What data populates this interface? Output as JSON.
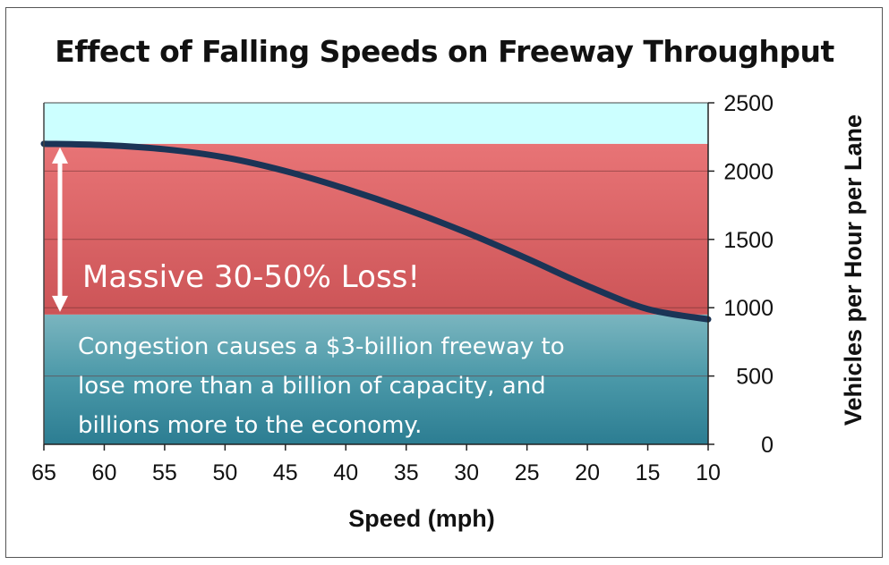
{
  "chart_data": {
    "type": "line",
    "title": "Effect of Falling Speeds on Freeway Throughput",
    "xlabel": "Speed (mph)",
    "ylabel": "Vehicles per Hour per Lane",
    "x_axis_reversed": true,
    "y_axis_side": "right",
    "xlim": [
      65,
      10
    ],
    "ylim": [
      0,
      2500
    ],
    "x_ticks": [
      65,
      60,
      55,
      50,
      45,
      40,
      35,
      30,
      25,
      20,
      15,
      10
    ],
    "y_ticks": [
      0,
      500,
      1000,
      1500,
      2000,
      2500
    ],
    "grid": "horizontal",
    "series": [
      {
        "x": [
          65,
          60,
          55,
          50,
          45,
          40,
          35,
          30,
          25,
          20,
          15,
          10
        ],
        "values": [
          2200,
          2190,
          2160,
          2100,
          2000,
          1870,
          1720,
          1550,
          1360,
          1160,
          990,
          915
        ]
      }
    ],
    "bands": [
      {
        "from": 0,
        "to": 950,
        "color": "#3d8ea0"
      },
      {
        "from": 950,
        "to": 2200,
        "color": "#d96a6c"
      },
      {
        "from": 2200,
        "to": 2500,
        "color": "#ccffff"
      }
    ],
    "annotations": {
      "loss": "Massive 30-50% Loss!",
      "note_lines": [
        "Congestion causes a $3-billion freeway to",
        "lose more than a billion of capacity, and",
        "billions more to the economy."
      ]
    }
  },
  "colors": {
    "line": "#1b3456",
    "top_band": "#ccffff",
    "loss_band": "#d96a6c",
    "bottom_band": "#3d8ea0"
  }
}
